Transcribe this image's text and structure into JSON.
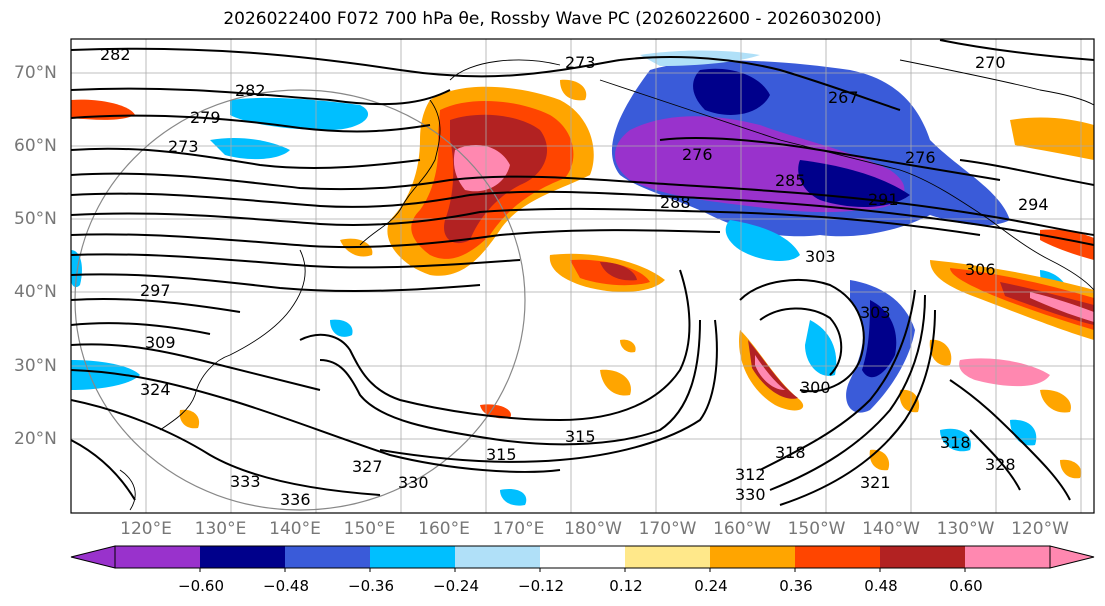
{
  "title": "2026022400 F072 700 hPa θe, Rossby Wave PC (2026022600 - 2026030200)",
  "lat_labels": [
    "70°N",
    "60°N",
    "50°N",
    "40°N",
    "30°N",
    "20°N"
  ],
  "lon_labels": [
    "120°E",
    "130°E",
    "140°E",
    "150°E",
    "160°E",
    "170°E",
    "180°W",
    "170°W",
    "160°W",
    "150°W",
    "140°W",
    "130°W",
    "120°W"
  ],
  "colorbar": {
    "ticks": [
      "−0.60",
      "−0.48",
      "−0.36",
      "−0.24",
      "−0.12",
      "0.12",
      "0.24",
      "0.36",
      "0.48",
      "0.60"
    ],
    "colors": [
      "#9932cc",
      "#00008b",
      "#3a5bd9",
      "#00bfff",
      "#b0e0f8",
      "#ffffff",
      "#ffe88a",
      "#ffa500",
      "#ff4500",
      "#b22222",
      "#ff88b0"
    ]
  },
  "contour_labels": [
    "282",
    "273",
    "270",
    "267",
    "279",
    "273",
    "282",
    "276",
    "285",
    "288",
    "291",
    "276",
    "294",
    "297",
    "303",
    "306",
    "303",
    "300",
    "309",
    "318",
    "324",
    "327",
    "315",
    "330",
    "333",
    "336",
    "321",
    "312",
    "318",
    "315",
    "328",
    "330"
  ]
}
